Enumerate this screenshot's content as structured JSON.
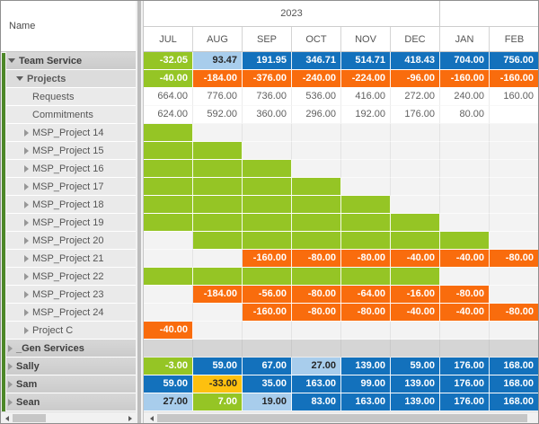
{
  "left_pane": {
    "header": "Name"
  },
  "timescale": {
    "year_left": "2023",
    "year_right": "",
    "months": [
      "JUL",
      "AUG",
      "SEP",
      "OCT",
      "NOV",
      "DEC",
      "JAN",
      "FEB"
    ]
  },
  "colors": {
    "green": "#95c525",
    "blue": "#1371bc",
    "lightblue": "#a8cdec",
    "orange": "#f96c0d",
    "yellow": "#fdc00f",
    "gray": "#d5d5d5",
    "accent_strip": "#4d8728"
  },
  "rows": [
    {
      "label": "Team Service",
      "level": 0,
      "state": "expanded",
      "bold": true,
      "cells": [
        [
          "-32.05",
          "green"
        ],
        [
          "93.47",
          "lightblue"
        ],
        [
          "191.95",
          "blue"
        ],
        [
          "346.71",
          "blue"
        ],
        [
          "514.71",
          "blue"
        ],
        [
          "418.43",
          "blue"
        ],
        [
          "704.00",
          "blue"
        ],
        [
          "756.00",
          "blue"
        ]
      ]
    },
    {
      "label": "Projects",
      "level": 1,
      "state": "expanded",
      "bold": true,
      "cells": [
        [
          "-40.00",
          "green"
        ],
        [
          "-184.00",
          "orange"
        ],
        [
          "-376.00",
          "orange"
        ],
        [
          "-240.00",
          "orange"
        ],
        [
          "-224.00",
          "orange"
        ],
        [
          "-96.00",
          "orange"
        ],
        [
          "-160.00",
          "orange"
        ],
        [
          "-160.00",
          "orange"
        ]
      ]
    },
    {
      "label": "Requests",
      "level": 2,
      "state": "none",
      "bold": false,
      "cells": [
        [
          "664.00",
          "plain"
        ],
        [
          "776.00",
          "plain"
        ],
        [
          "736.00",
          "plain"
        ],
        [
          "536.00",
          "plain"
        ],
        [
          "416.00",
          "plain"
        ],
        [
          "272.00",
          "plain"
        ],
        [
          "240.00",
          "plain"
        ],
        [
          "160.00",
          "plain"
        ]
      ]
    },
    {
      "label": "Commitments",
      "level": 2,
      "state": "none",
      "bold": false,
      "cells": [
        [
          "624.00",
          "plain"
        ],
        [
          "592.00",
          "plain"
        ],
        [
          "360.00",
          "plain"
        ],
        [
          "296.00",
          "plain"
        ],
        [
          "192.00",
          "plain"
        ],
        [
          "176.00",
          "plain"
        ],
        [
          "80.00",
          "plain"
        ],
        [
          "",
          "plain"
        ]
      ]
    },
    {
      "label": "MSP_Project 14",
      "level": 2,
      "state": "collapsed",
      "bold": false,
      "cells": [
        [
          "",
          "green"
        ],
        [
          "",
          "empty"
        ],
        [
          "",
          "empty"
        ],
        [
          "",
          "empty"
        ],
        [
          "",
          "empty"
        ],
        [
          "",
          "empty"
        ],
        [
          "",
          "empty"
        ],
        [
          "",
          "empty"
        ]
      ]
    },
    {
      "label": "MSP_Project 15",
      "level": 2,
      "state": "collapsed",
      "bold": false,
      "cells": [
        [
          "",
          "green"
        ],
        [
          "",
          "green"
        ],
        [
          "",
          "empty"
        ],
        [
          "",
          "empty"
        ],
        [
          "",
          "empty"
        ],
        [
          "",
          "empty"
        ],
        [
          "",
          "empty"
        ],
        [
          "",
          "empty"
        ]
      ]
    },
    {
      "label": "MSP_Project 16",
      "level": 2,
      "state": "collapsed",
      "bold": false,
      "cells": [
        [
          "",
          "green"
        ],
        [
          "",
          "green"
        ],
        [
          "",
          "green"
        ],
        [
          "",
          "empty"
        ],
        [
          "",
          "empty"
        ],
        [
          "",
          "empty"
        ],
        [
          "",
          "empty"
        ],
        [
          "",
          "empty"
        ]
      ]
    },
    {
      "label": "MSP_Project 17",
      "level": 2,
      "state": "collapsed",
      "bold": false,
      "cells": [
        [
          "",
          "green"
        ],
        [
          "",
          "green"
        ],
        [
          "",
          "green"
        ],
        [
          "",
          "green"
        ],
        [
          "",
          "empty"
        ],
        [
          "",
          "empty"
        ],
        [
          "",
          "empty"
        ],
        [
          "",
          "empty"
        ]
      ]
    },
    {
      "label": "MSP_Project 18",
      "level": 2,
      "state": "collapsed",
      "bold": false,
      "cells": [
        [
          "",
          "green"
        ],
        [
          "",
          "green"
        ],
        [
          "",
          "green"
        ],
        [
          "",
          "green"
        ],
        [
          "",
          "green"
        ],
        [
          "",
          "empty"
        ],
        [
          "",
          "empty"
        ],
        [
          "",
          "empty"
        ]
      ]
    },
    {
      "label": "MSP_Project 19",
      "level": 2,
      "state": "collapsed",
      "bold": false,
      "cells": [
        [
          "",
          "green"
        ],
        [
          "",
          "green"
        ],
        [
          "",
          "green"
        ],
        [
          "",
          "green"
        ],
        [
          "",
          "green"
        ],
        [
          "",
          "green"
        ],
        [
          "",
          "empty"
        ],
        [
          "",
          "empty"
        ]
      ]
    },
    {
      "label": "MSP_Project 20",
      "level": 2,
      "state": "collapsed",
      "bold": false,
      "cells": [
        [
          "",
          "empty"
        ],
        [
          "",
          "green"
        ],
        [
          "",
          "green"
        ],
        [
          "",
          "green"
        ],
        [
          "",
          "green"
        ],
        [
          "",
          "green"
        ],
        [
          "",
          "green"
        ],
        [
          "",
          "empty"
        ]
      ]
    },
    {
      "label": "MSP_Project 21",
      "level": 2,
      "state": "collapsed",
      "bold": false,
      "cells": [
        [
          "",
          "empty"
        ],
        [
          "",
          "empty"
        ],
        [
          "-160.00",
          "orange"
        ],
        [
          "-80.00",
          "orange"
        ],
        [
          "-80.00",
          "orange"
        ],
        [
          "-40.00",
          "orange"
        ],
        [
          "-40.00",
          "orange"
        ],
        [
          "-80.00",
          "orange"
        ]
      ]
    },
    {
      "label": "MSP_Project 22",
      "level": 2,
      "state": "collapsed",
      "bold": false,
      "cells": [
        [
          "",
          "green"
        ],
        [
          "",
          "green"
        ],
        [
          "",
          "green"
        ],
        [
          "",
          "green"
        ],
        [
          "",
          "green"
        ],
        [
          "",
          "green"
        ],
        [
          "",
          "empty"
        ],
        [
          "",
          "empty"
        ]
      ]
    },
    {
      "label": "MSP_Project 23",
      "level": 2,
      "state": "collapsed",
      "bold": false,
      "cells": [
        [
          "",
          "empty"
        ],
        [
          "-184.00",
          "orange"
        ],
        [
          "-56.00",
          "orange"
        ],
        [
          "-80.00",
          "orange"
        ],
        [
          "-64.00",
          "orange"
        ],
        [
          "-16.00",
          "orange"
        ],
        [
          "-80.00",
          "orange"
        ],
        [
          "",
          "empty"
        ]
      ]
    },
    {
      "label": "MSP_Project 24",
      "level": 2,
      "state": "collapsed",
      "bold": false,
      "cells": [
        [
          "",
          "empty"
        ],
        [
          "",
          "empty"
        ],
        [
          "-160.00",
          "orange"
        ],
        [
          "-80.00",
          "orange"
        ],
        [
          "-80.00",
          "orange"
        ],
        [
          "-40.00",
          "orange"
        ],
        [
          "-40.00",
          "orange"
        ],
        [
          "-80.00",
          "orange"
        ]
      ]
    },
    {
      "label": "Project C",
      "level": 2,
      "state": "collapsed",
      "bold": false,
      "cells": [
        [
          "-40.00",
          "orange"
        ],
        [
          "",
          "empty"
        ],
        [
          "",
          "empty"
        ],
        [
          "",
          "empty"
        ],
        [
          "",
          "empty"
        ],
        [
          "",
          "empty"
        ],
        [
          "",
          "empty"
        ],
        [
          "",
          "empty"
        ]
      ]
    },
    {
      "label": "_Gen Services",
      "level": 0,
      "state": "collapsed",
      "bold": true,
      "cells": [
        [
          "",
          "gray"
        ],
        [
          "",
          "gray"
        ],
        [
          "",
          "gray"
        ],
        [
          "",
          "gray"
        ],
        [
          "",
          "gray"
        ],
        [
          "",
          "gray"
        ],
        [
          "",
          "gray"
        ],
        [
          "",
          "gray"
        ]
      ]
    },
    {
      "label": "Sally",
      "level": 0,
      "state": "collapsed",
      "bold": true,
      "cells": [
        [
          "-3.00",
          "green"
        ],
        [
          "59.00",
          "blue"
        ],
        [
          "67.00",
          "blue"
        ],
        [
          "27.00",
          "lightblue"
        ],
        [
          "139.00",
          "blue"
        ],
        [
          "59.00",
          "blue"
        ],
        [
          "176.00",
          "blue"
        ],
        [
          "168.00",
          "blue"
        ]
      ]
    },
    {
      "label": "Sam",
      "level": 0,
      "state": "collapsed",
      "bold": true,
      "cells": [
        [
          "59.00",
          "blue"
        ],
        [
          "-33.00",
          "yellow"
        ],
        [
          "35.00",
          "blue"
        ],
        [
          "163.00",
          "blue"
        ],
        [
          "99.00",
          "blue"
        ],
        [
          "139.00",
          "blue"
        ],
        [
          "176.00",
          "blue"
        ],
        [
          "168.00",
          "blue"
        ]
      ]
    },
    {
      "label": "Sean",
      "level": 0,
      "state": "collapsed",
      "bold": true,
      "cells": [
        [
          "27.00",
          "lightblue"
        ],
        [
          "7.00",
          "green"
        ],
        [
          "19.00",
          "lightblue"
        ],
        [
          "83.00",
          "blue"
        ],
        [
          "163.00",
          "blue"
        ],
        [
          "139.00",
          "blue"
        ],
        [
          "176.00",
          "blue"
        ],
        [
          "168.00",
          "blue"
        ]
      ]
    }
  ]
}
